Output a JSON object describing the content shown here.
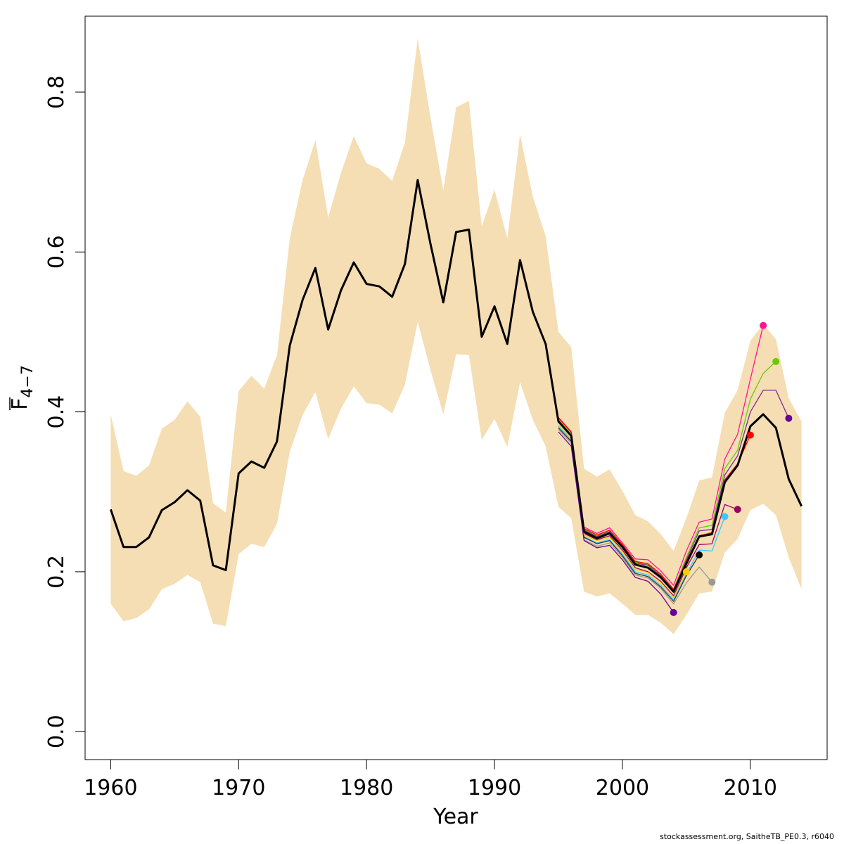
{
  "chart_data": {
    "type": "line",
    "xlabel": "Year",
    "ylabel_main": "F",
    "ylabel_sub": "4−7",
    "xlim": [
      1958,
      2016
    ],
    "ylim": [
      -0.035,
      0.895
    ],
    "x_ticks": [
      1960,
      1970,
      1980,
      1990,
      2000,
      2010
    ],
    "y_ticks": [
      0.0,
      0.2,
      0.4,
      0.6,
      0.8
    ],
    "y_tick_labels": [
      "0.0",
      "0.2",
      "0.4",
      "0.6",
      "0.8"
    ],
    "band_color": "#F5DEB3",
    "confidence_band": {
      "years": [
        1960,
        1961,
        1962,
        1963,
        1964,
        1965,
        1966,
        1967,
        1968,
        1969,
        1970,
        1971,
        1972,
        1973,
        1974,
        1975,
        1976,
        1977,
        1978,
        1979,
        1980,
        1981,
        1982,
        1983,
        1984,
        1985,
        1986,
        1987,
        1988,
        1989,
        1990,
        1991,
        1992,
        1993,
        1994,
        1995,
        1996,
        1997,
        1998,
        1999,
        2000,
        2001,
        2002,
        2003,
        2004,
        2005,
        2006,
        2007,
        2008,
        2009,
        2010,
        2011,
        2012,
        2013,
        2014
      ],
      "lower": [
        0.16,
        0.138,
        0.142,
        0.153,
        0.178,
        0.185,
        0.196,
        0.187,
        0.135,
        0.132,
        0.222,
        0.235,
        0.231,
        0.26,
        0.35,
        0.396,
        0.425,
        0.366,
        0.404,
        0.432,
        0.411,
        0.409,
        0.398,
        0.434,
        0.513,
        0.452,
        0.397,
        0.472,
        0.471,
        0.365,
        0.391,
        0.356,
        0.437,
        0.39,
        0.357,
        0.281,
        0.267,
        0.175,
        0.169,
        0.173,
        0.16,
        0.146,
        0.146,
        0.136,
        0.122,
        0.146,
        0.173,
        0.175,
        0.224,
        0.241,
        0.277,
        0.285,
        0.271,
        0.218,
        0.178
      ],
      "upper": [
        0.397,
        0.326,
        0.32,
        0.333,
        0.379,
        0.39,
        0.413,
        0.394,
        0.286,
        0.274,
        0.426,
        0.445,
        0.429,
        0.471,
        0.617,
        0.69,
        0.74,
        0.643,
        0.699,
        0.745,
        0.711,
        0.704,
        0.689,
        0.737,
        0.867,
        0.768,
        0.677,
        0.781,
        0.789,
        0.632,
        0.678,
        0.617,
        0.747,
        0.669,
        0.62,
        0.5,
        0.481,
        0.329,
        0.319,
        0.328,
        0.301,
        0.271,
        0.263,
        0.247,
        0.226,
        0.267,
        0.314,
        0.318,
        0.399,
        0.427,
        0.489,
        0.51,
        0.491,
        0.417,
        0.388
      ]
    },
    "series": [
      {
        "color": "#000000",
        "width": 3,
        "x": [
          1960,
          1961,
          1962,
          1963,
          1964,
          1965,
          1966,
          1967,
          1968,
          1969,
          1970,
          1971,
          1972,
          1973,
          1974,
          1975,
          1976,
          1977,
          1978,
          1979,
          1980,
          1981,
          1982,
          1983,
          1984,
          1985,
          1986,
          1987,
          1988,
          1989,
          1990,
          1991,
          1992,
          1993,
          1994,
          1995,
          1996,
          1997,
          1998,
          1999,
          2000,
          2001,
          2002,
          2003,
          2004,
          2005,
          2006,
          2007,
          2008,
          2009,
          2010,
          2011,
          2012,
          2013,
          2014
        ],
        "y": [
          0.278,
          0.231,
          0.231,
          0.243,
          0.277,
          0.287,
          0.302,
          0.289,
          0.208,
          0.202,
          0.323,
          0.338,
          0.33,
          0.363,
          0.483,
          0.54,
          0.58,
          0.503,
          0.552,
          0.587,
          0.56,
          0.557,
          0.544,
          0.585,
          0.69,
          0.61,
          0.537,
          0.625,
          0.628,
          0.494,
          0.532,
          0.485,
          0.59,
          0.525,
          0.485,
          0.388,
          0.37,
          0.25,
          0.242,
          0.248,
          0.231,
          0.209,
          0.205,
          0.193,
          0.175,
          0.21,
          0.244,
          0.247,
          0.312,
          0.333,
          0.382,
          0.397,
          0.38,
          0.316,
          0.282
        ]
      },
      {
        "color": "#FF1493",
        "width": 1.3,
        "x": [
          1995,
          1996,
          1997,
          1998,
          1999,
          2000,
          2001,
          2002,
          2003,
          2004,
          2005,
          2006,
          2007,
          2008,
          2009,
          2010,
          2011
        ],
        "y": [
          0.392,
          0.374,
          0.256,
          0.248,
          0.255,
          0.236,
          0.216,
          0.215,
          0.201,
          0.183,
          0.226,
          0.262,
          0.266,
          0.341,
          0.372,
          0.441,
          0.508
        ]
      },
      {
        "color": "#66CC00",
        "width": 1.3,
        "x": [
          1995,
          1996,
          1997,
          1998,
          1999,
          2000,
          2001,
          2002,
          2003,
          2004,
          2005,
          2006,
          2007,
          2008,
          2009,
          2010,
          2011,
          2012
        ],
        "y": [
          0.39,
          0.372,
          0.253,
          0.245,
          0.251,
          0.233,
          0.212,
          0.209,
          0.196,
          0.178,
          0.218,
          0.255,
          0.258,
          0.329,
          0.352,
          0.416,
          0.448,
          0.463
        ]
      },
      {
        "color": "#7B2D8E",
        "width": 1.3,
        "x": [
          1995,
          1996,
          1997,
          1998,
          1999,
          2000,
          2001,
          2002,
          2003,
          2004,
          2005,
          2006,
          2007,
          2008,
          2009,
          2010,
          2011,
          2012,
          2013
        ],
        "y": [
          0.389,
          0.371,
          0.252,
          0.244,
          0.25,
          0.232,
          0.211,
          0.208,
          0.195,
          0.176,
          0.215,
          0.251,
          0.253,
          0.321,
          0.345,
          0.4,
          0.427,
          0.427,
          0.392
        ]
      },
      {
        "color": "#FF0000",
        "width": 1.3,
        "x": [
          1995,
          1996,
          1997,
          1998,
          1999,
          2000,
          2001,
          2002,
          2003,
          2004,
          2005,
          2006,
          2007,
          2008,
          2009,
          2010
        ],
        "y": [
          0.393,
          0.375,
          0.254,
          0.246,
          0.252,
          0.234,
          0.213,
          0.21,
          0.197,
          0.178,
          0.213,
          0.245,
          0.249,
          0.315,
          0.335,
          0.371
        ]
      },
      {
        "color": "#990066",
        "width": 1.3,
        "x": [
          1995,
          1996,
          1997,
          1998,
          1999,
          2000,
          2001,
          2002,
          2003,
          2004,
          2005,
          2006,
          2007,
          2008,
          2009
        ],
        "y": [
          0.387,
          0.37,
          0.248,
          0.24,
          0.245,
          0.227,
          0.205,
          0.2,
          0.188,
          0.17,
          0.205,
          0.234,
          0.235,
          0.284,
          0.278
        ]
      },
      {
        "color": "#33CCFF",
        "width": 1.3,
        "x": [
          1995,
          1996,
          1997,
          1998,
          1999,
          2000,
          2001,
          2002,
          2003,
          2004,
          2005,
          2006,
          2007,
          2008
        ],
        "y": [
          0.382,
          0.365,
          0.244,
          0.236,
          0.24,
          0.222,
          0.2,
          0.196,
          0.183,
          0.165,
          0.197,
          0.227,
          0.226,
          0.269
        ]
      },
      {
        "color": "#999999",
        "width": 1.3,
        "x": [
          1995,
          1996,
          1997,
          1998,
          1999,
          2000,
          2001,
          2002,
          2003,
          2004,
          2005,
          2006,
          2007
        ],
        "y": [
          0.378,
          0.361,
          0.24,
          0.232,
          0.236,
          0.218,
          0.196,
          0.192,
          0.179,
          0.16,
          0.186,
          0.206,
          0.187
        ]
      },
      {
        "color": "#333333",
        "width": 1.3,
        "x": [
          1995,
          1996,
          1997,
          1998,
          1999,
          2000,
          2001,
          2002,
          2003,
          2004,
          2005,
          2006
        ],
        "y": [
          0.38,
          0.363,
          0.243,
          0.235,
          0.239,
          0.22,
          0.198,
          0.194,
          0.181,
          0.163,
          0.195,
          0.221
        ]
      },
      {
        "color": "#FFCC00",
        "width": 1.3,
        "x": [
          1995,
          1996,
          1997,
          1998,
          1999,
          2000,
          2001,
          2002,
          2003,
          2004,
          2005
        ],
        "y": [
          0.384,
          0.366,
          0.246,
          0.239,
          0.243,
          0.225,
          0.203,
          0.199,
          0.186,
          0.168,
          0.2
        ]
      },
      {
        "color": "#660099",
        "width": 1.3,
        "x": [
          1995,
          1996,
          1997,
          1998,
          1999,
          2000,
          2001,
          2002,
          2003,
          2004
        ],
        "y": [
          0.375,
          0.357,
          0.239,
          0.23,
          0.233,
          0.215,
          0.193,
          0.188,
          0.172,
          0.149
        ]
      }
    ],
    "endpoints": [
      {
        "x": 2004,
        "y": 0.149,
        "color": "#660099"
      },
      {
        "x": 2005,
        "y": 0.2,
        "color": "#FFCC00"
      },
      {
        "x": 2006,
        "y": 0.221,
        "color": "#000000"
      },
      {
        "x": 2007,
        "y": 0.187,
        "color": "#999999"
      },
      {
        "x": 2008,
        "y": 0.269,
        "color": "#33CCFF"
      },
      {
        "x": 2009,
        "y": 0.278,
        "color": "#990066"
      },
      {
        "x": 2010,
        "y": 0.371,
        "color": "#FF0000"
      },
      {
        "x": 2011,
        "y": 0.508,
        "color": "#FF1493"
      },
      {
        "x": 2012,
        "y": 0.463,
        "color": "#66CC00"
      },
      {
        "x": 2013,
        "y": 0.392,
        "color": "#660099"
      }
    ]
  },
  "footer": "stockassessment.org, SaitheTB_PE0.3, r6040"
}
